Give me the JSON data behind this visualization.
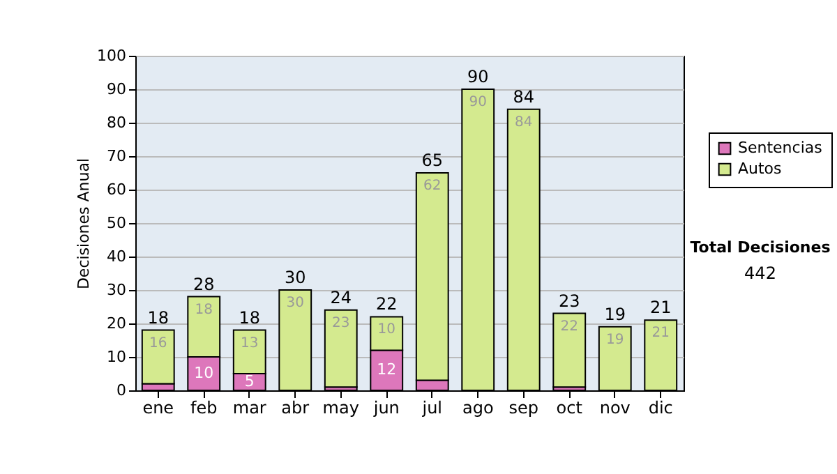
{
  "chart_data": {
    "type": "bar",
    "stacked": true,
    "ylabel": "Decisiones Anual",
    "categories": [
      "ene",
      "feb",
      "mar",
      "abr",
      "may",
      "jun",
      "jul",
      "ago",
      "sep",
      "oct",
      "nov",
      "dic"
    ],
    "series": [
      {
        "name": "Sentencias",
        "color": "#dd77bb",
        "values": [
          2,
          10,
          5,
          0,
          1,
          12,
          3,
          0,
          0,
          1,
          0,
          0
        ],
        "value_labels": [
          null,
          "10",
          "5",
          null,
          null,
          "12",
          null,
          null,
          null,
          null,
          null,
          null
        ]
      },
      {
        "name": "Autos",
        "color": "#d4ea8f",
        "values": [
          16,
          18,
          13,
          30,
          23,
          10,
          62,
          90,
          84,
          22,
          19,
          21
        ],
        "value_labels": [
          "16",
          "18",
          "13",
          "30",
          "23",
          "10",
          "62",
          "90",
          "84",
          "22",
          "19",
          "21"
        ]
      }
    ],
    "totals": [
      "18",
      "28",
      "18",
      "30",
      "24",
      "22",
      "65",
      "90",
      "84",
      "23",
      "19",
      "21"
    ],
    "ylim": [
      0,
      100
    ],
    "yticks": [
      0,
      10,
      20,
      30,
      40,
      50,
      60,
      70,
      80,
      90,
      100
    ],
    "grid": "y",
    "legend": "right",
    "annotations": [
      "Total Decisiones",
      "442"
    ]
  }
}
